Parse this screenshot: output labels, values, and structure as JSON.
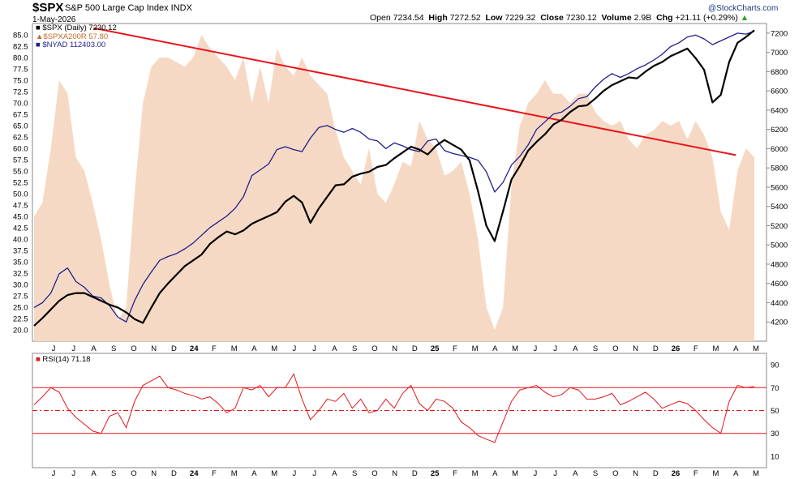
{
  "header": {
    "symbol": "$SPX",
    "name": "S&P 500 Large Cap Index INDX",
    "date": "1-May-2026",
    "open_label": "Open",
    "open": "7234.54",
    "high_label": "High",
    "high": "7272.52",
    "low_label": "Low",
    "low": "7229.32",
    "close_label": "Close",
    "close": "7230.12",
    "volume_label": "Volume",
    "volume": "2.9B",
    "chg_label": "Chg",
    "chg": "+21.11 (+0.29%)",
    "credit": "@StockCharts.com"
  },
  "legend": {
    "spx": "$SPX (Daily) 7230.12",
    "spxa": "$SPXA200R 57.80",
    "nyad": "$NYAD 112403.00"
  },
  "rsi_label": "RSI(14) 71.18",
  "colors": {
    "spx": "#000000",
    "nyad": "#1f1f8f",
    "breadth": "#f6d9c4",
    "trend": "#e8141a",
    "rsi": "#e8141a"
  },
  "chart_data": [
    {
      "type": "line",
      "x_ticks": [
        "J",
        "J",
        "A",
        "S",
        "O",
        "N",
        "D",
        "24",
        "F",
        "M",
        "A",
        "M",
        "J",
        "J",
        "A",
        "S",
        "O",
        "N",
        "D",
        "25",
        "F",
        "M",
        "A",
        "M",
        "J",
        "J",
        "A",
        "S",
        "O",
        "N",
        "D",
        "26",
        "F",
        "M",
        "A",
        "M"
      ],
      "bold_ticks": [
        "24",
        "25",
        "26"
      ],
      "y_left_ticks": [
        "85.0",
        "82.5",
        "80.0",
        "77.5",
        "75.0",
        "72.5",
        "70.0",
        "67.5",
        "65.0",
        "62.5",
        "60.0",
        "57.5",
        "55.0",
        "52.5",
        "50.0",
        "47.5",
        "45.0",
        "42.5",
        "40.0",
        "37.5",
        "35.0",
        "32.5",
        "30.0",
        "27.5",
        "25.0",
        "22.5",
        "20.0"
      ],
      "y_left_range": [
        17.5,
        87.5
      ],
      "y_right_ticks": [
        "7200",
        "7000",
        "6800",
        "6600",
        "6400",
        "6200",
        "6000",
        "5800",
        "5600",
        "5400",
        "5200",
        "5000",
        "4800",
        "4600",
        "4400",
        "4200"
      ],
      "y_right_range": [
        4000,
        7300
      ],
      "series": [
        {
          "name": "$SPX (Daily)",
          "axis": "right",
          "values": [
            4160,
            4240,
            4330,
            4420,
            4480,
            4500,
            4500,
            4460,
            4420,
            4380,
            4350,
            4300,
            4230,
            4190,
            4350,
            4500,
            4600,
            4690,
            4780,
            4840,
            4900,
            5010,
            5080,
            5140,
            5110,
            5150,
            5220,
            5260,
            5300,
            5340,
            5450,
            5510,
            5440,
            5230,
            5380,
            5500,
            5620,
            5630,
            5710,
            5740,
            5760,
            5810,
            5830,
            5900,
            5960,
            6020,
            5990,
            5940,
            6030,
            6090,
            6040,
            5990,
            5880,
            5560,
            5200,
            5040,
            5350,
            5680,
            5820,
            5980,
            6070,
            6150,
            6250,
            6300,
            6380,
            6440,
            6450,
            6520,
            6600,
            6660,
            6700,
            6740,
            6730,
            6800,
            6860,
            6900,
            6960,
            7000,
            7040,
            6940,
            6820,
            6480,
            6560,
            6900,
            7100,
            7160,
            7230
          ]
        },
        {
          "name": "$SPXA200R",
          "axis": "left",
          "values": [
            45,
            48,
            60,
            75,
            72,
            58,
            55,
            48,
            40,
            30,
            22,
            25,
            50,
            70,
            78,
            80,
            80,
            79,
            78,
            80,
            85,
            82,
            80,
            78,
            75,
            80,
            70,
            78,
            70,
            82,
            78,
            76,
            80,
            76,
            74,
            72,
            64,
            58,
            55,
            52,
            60,
            50,
            48,
            52,
            57,
            56,
            66,
            62,
            60,
            54,
            55,
            57,
            50,
            40,
            25,
            20,
            25,
            52,
            65,
            70,
            72,
            75,
            72,
            72,
            70,
            72,
            72,
            68,
            66,
            65,
            66,
            62,
            60,
            63,
            64,
            66,
            65,
            66,
            62,
            66,
            63,
            58,
            46,
            42,
            55,
            60,
            58
          ]
        },
        {
          "name": "$NYAD",
          "axis": "right",
          "values": [
            4350,
            4400,
            4500,
            4700,
            4760,
            4620,
            4560,
            4470,
            4450,
            4370,
            4250,
            4200,
            4420,
            4590,
            4720,
            4840,
            4880,
            4910,
            4960,
            5020,
            5100,
            5180,
            5240,
            5300,
            5380,
            5500,
            5720,
            5780,
            5840,
            5990,
            6020,
            5990,
            5970,
            6110,
            6220,
            6240,
            6200,
            6170,
            6210,
            6170,
            6100,
            6080,
            6000,
            6060,
            6030,
            5990,
            5970,
            6080,
            6100,
            5980,
            5950,
            5930,
            5910,
            5880,
            5760,
            5550,
            5650,
            5830,
            5920,
            6040,
            6200,
            6280,
            6360,
            6380,
            6440,
            6520,
            6540,
            6640,
            6720,
            6780,
            6740,
            6780,
            6830,
            6870,
            6920,
            6980,
            7060,
            7100,
            7160,
            7180,
            7140,
            7080,
            7120,
            7160,
            7200,
            7190,
            7220
          ]
        },
        {
          "name": "trendline",
          "axis": "left",
          "points": [
            [
              "A 24",
              86.5
            ],
            [
              "A 26",
              58.5
            ]
          ]
        }
      ]
    },
    {
      "type": "line",
      "title": "RSI(14)",
      "x_ticks": [
        "J",
        "J",
        "A",
        "S",
        "O",
        "N",
        "D",
        "24",
        "F",
        "M",
        "A",
        "M",
        "J",
        "J",
        "A",
        "S",
        "O",
        "N",
        "D",
        "25",
        "F",
        "M",
        "A",
        "M",
        "J",
        "J",
        "A",
        "S",
        "O",
        "N",
        "D",
        "26",
        "F",
        "M",
        "A",
        "M"
      ],
      "bold_ticks": [
        "24",
        "25",
        "26"
      ],
      "y_ticks": [
        "90",
        "70",
        "50",
        "30",
        "10"
      ],
      "y_range": [
        0,
        100
      ],
      "reference_lines": [
        70,
        50,
        30
      ],
      "series": [
        {
          "name": "RSI(14)",
          "values": [
            55,
            62,
            70,
            66,
            52,
            44,
            38,
            32,
            30,
            45,
            48,
            35,
            58,
            72,
            76,
            80,
            70,
            68,
            65,
            63,
            60,
            62,
            56,
            48,
            52,
            70,
            68,
            72,
            62,
            70,
            70,
            82,
            60,
            42,
            50,
            60,
            58,
            65,
            52,
            60,
            48,
            50,
            60,
            52,
            65,
            72,
            56,
            50,
            60,
            58,
            52,
            40,
            35,
            28,
            25,
            22,
            40,
            58,
            68,
            70,
            72,
            66,
            62,
            64,
            70,
            68,
            60,
            60,
            62,
            65,
            55,
            58,
            62,
            66,
            60,
            52,
            55,
            58,
            56,
            50,
            42,
            35,
            30,
            58,
            72,
            70,
            71
          ]
        }
      ]
    }
  ]
}
